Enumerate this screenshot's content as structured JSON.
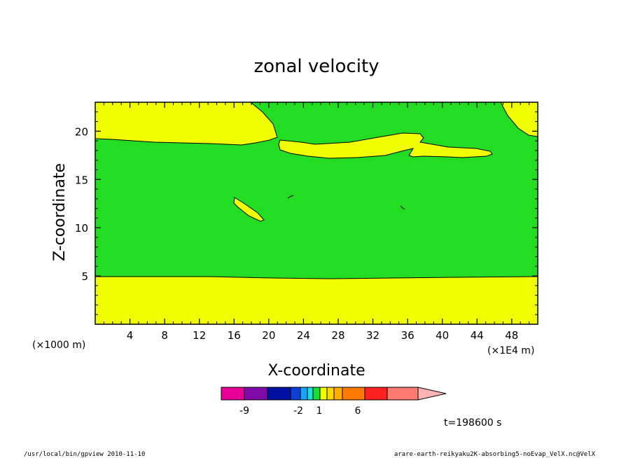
{
  "chart_data": {
    "type": "heatmap",
    "title": "zonal velocity",
    "xlabel": "X-coordinate",
    "ylabel": "Z-coordinate",
    "x_unit_left": "(×1000 m)",
    "x_unit_right": "(×1E4 m)",
    "x_ticks": [
      4,
      8,
      12,
      16,
      20,
      24,
      28,
      32,
      36,
      40,
      44,
      48
    ],
    "y_ticks": [
      5,
      10,
      15,
      20
    ],
    "xlim": [
      0,
      51
    ],
    "ylim": [
      0,
      23
    ],
    "regions": [
      {
        "level": "1 to 2",
        "color": "#f0ff00",
        "description_band": "lower layer z 0-5"
      },
      {
        "level": "0 to 1",
        "color": "#22dd22",
        "description_band": "middle layer z 5-19"
      },
      {
        "level": "1 to 2",
        "color": "#f0ff00",
        "description_band": "upper layer z 19-23"
      }
    ],
    "colorbar": {
      "colors": [
        "#e60096",
        "#7f0aa8",
        "#0010a0",
        "#0b3fd6",
        "#16a4ff",
        "#20dede",
        "#17dc3a",
        "#f0ff00",
        "#ffd700",
        "#ffae00",
        "#ff7a00",
        "#ff2020",
        "#ff7b72",
        "#ffb3b3"
      ],
      "tick_labels": [
        "-9",
        "-2",
        "1",
        "6"
      ]
    },
    "time_label": "t=198600 s"
  },
  "footer": {
    "left": "/usr/local/bin/gpview   2010-11-10",
    "right": "arare-earth-reikyaku2K-absorbing5-noEvap_VelX.nc@VelX"
  }
}
